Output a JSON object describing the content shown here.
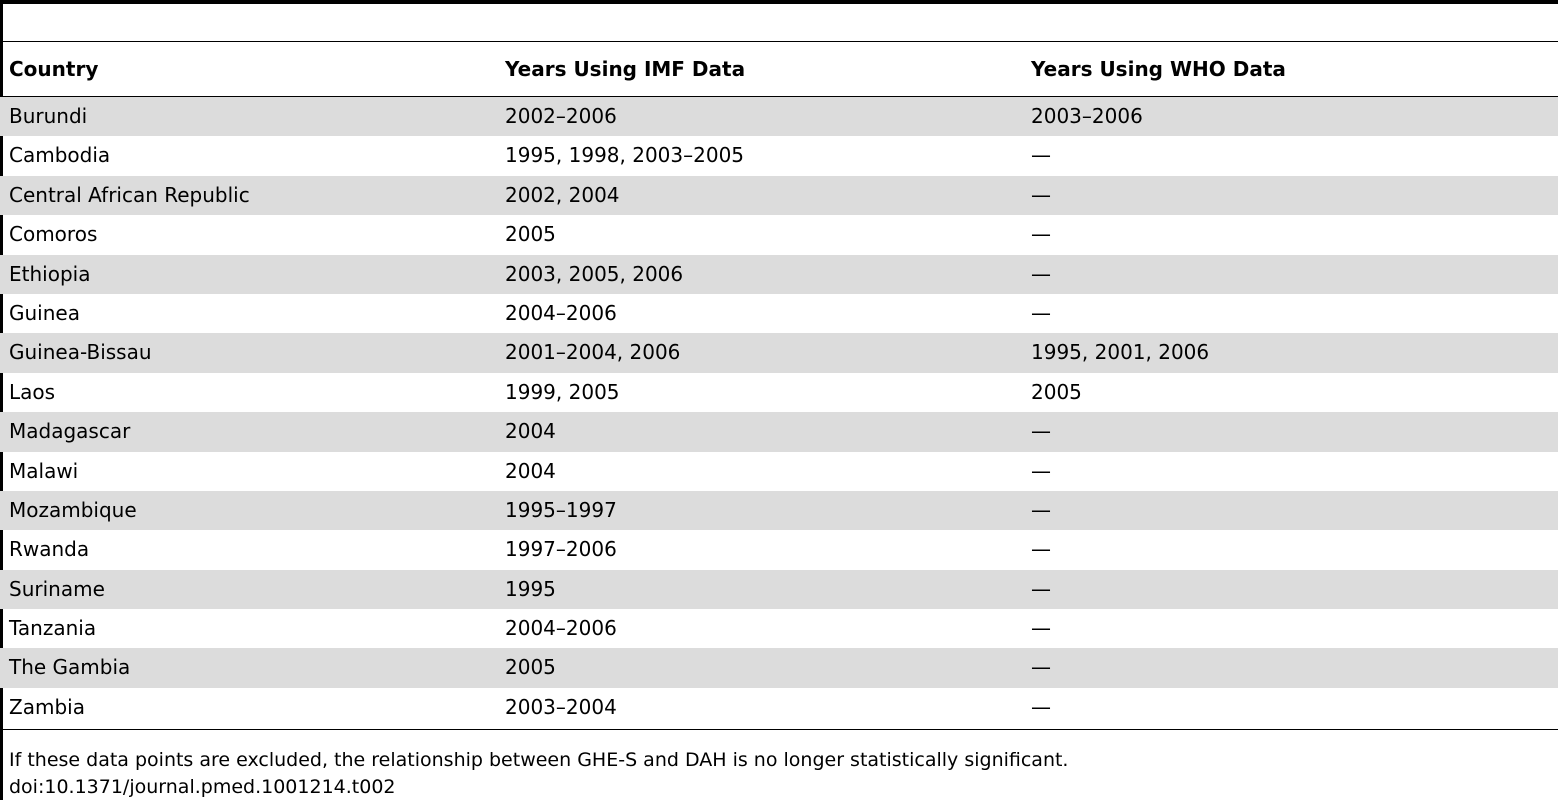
{
  "table": {
    "headers": [
      "Country",
      "Years Using IMF Data",
      "Years Using WHO Data"
    ],
    "rows": [
      [
        "Burundi",
        "2002–2006",
        "2003–2006"
      ],
      [
        "Cambodia",
        "1995, 1998, 2003–2005",
        "—"
      ],
      [
        "Central African Republic",
        "2002, 2004",
        "—"
      ],
      [
        "Comoros",
        "2005",
        "—"
      ],
      [
        "Ethiopia",
        "2003, 2005, 2006",
        "—"
      ],
      [
        "Guinea",
        "2004–2006",
        "—"
      ],
      [
        "Guinea-Bissau",
        "2001–2004, 2006",
        "1995, 2001, 2006"
      ],
      [
        "Laos",
        "1999, 2005",
        "2005"
      ],
      [
        "Madagascar",
        "2004",
        "—"
      ],
      [
        "Malawi",
        "2004",
        "—"
      ],
      [
        "Mozambique",
        "1995–1997",
        "—"
      ],
      [
        "Rwanda",
        "1997–2006",
        "—"
      ],
      [
        "Suriname",
        "1995",
        "—"
      ],
      [
        "Tanzania",
        "2004–2006",
        "—"
      ],
      [
        "The Gambia",
        "2005",
        "—"
      ],
      [
        "Zambia",
        "2003–2004",
        "—"
      ]
    ],
    "shaded_row_color": "#dcdcdc"
  },
  "footnote": "If these data points are excluded, the relationship between GHE-S and DAH is no longer statistically significant.",
  "doi": "doi:10.1371/journal.pmed.1001214.t002"
}
